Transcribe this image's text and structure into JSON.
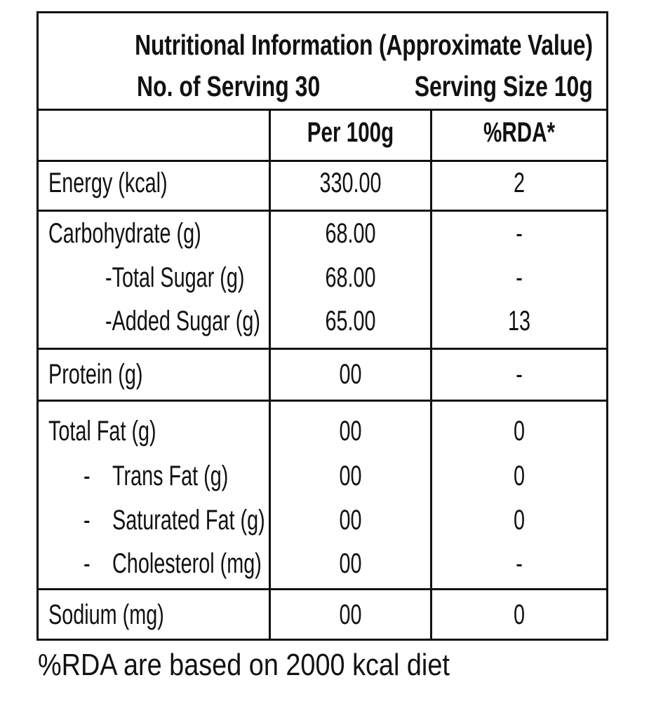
{
  "header": {
    "title": "Nutritional Information (Approximate Value)",
    "servings": "No. of Serving 30",
    "serving_size": "Serving Size 10g"
  },
  "columns": {
    "per100g": "Per 100g",
    "rda": "%RDA*"
  },
  "rows": {
    "energy": {
      "label": "Energy (kcal)",
      "per100g": "330.00",
      "rda": "2"
    },
    "carbohydrate": {
      "label": "Carbohydrate (g)",
      "per100g": "68.00",
      "rda": "-"
    },
    "total_sugar": {
      "label": "-Total Sugar (g)",
      "per100g": "68.00",
      "rda": "-"
    },
    "added_sugar": {
      "label": "-Added Sugar (g)",
      "per100g": "65.00",
      "rda": "13"
    },
    "protein": {
      "label": "Protein (g)",
      "per100g": "00",
      "rda": "-"
    },
    "total_fat": {
      "label": "Total Fat (g)",
      "per100g": "00",
      "rda": "0"
    },
    "trans_fat": {
      "bullet": "-",
      "label": "Trans Fat (g)",
      "per100g": "00",
      "rda": "0"
    },
    "saturated_fat": {
      "bullet": "-",
      "label": "Saturated Fat (g)",
      "per100g": "00",
      "rda": "0"
    },
    "cholesterol": {
      "bullet": "-",
      "label": "Cholesterol (mg)",
      "per100g": "00",
      "rda": "-"
    },
    "sodium": {
      "label": "Sodium (mg)",
      "per100g": "00",
      "rda": "0"
    }
  },
  "footnote": "%RDA are based on 2000 kcal diet"
}
